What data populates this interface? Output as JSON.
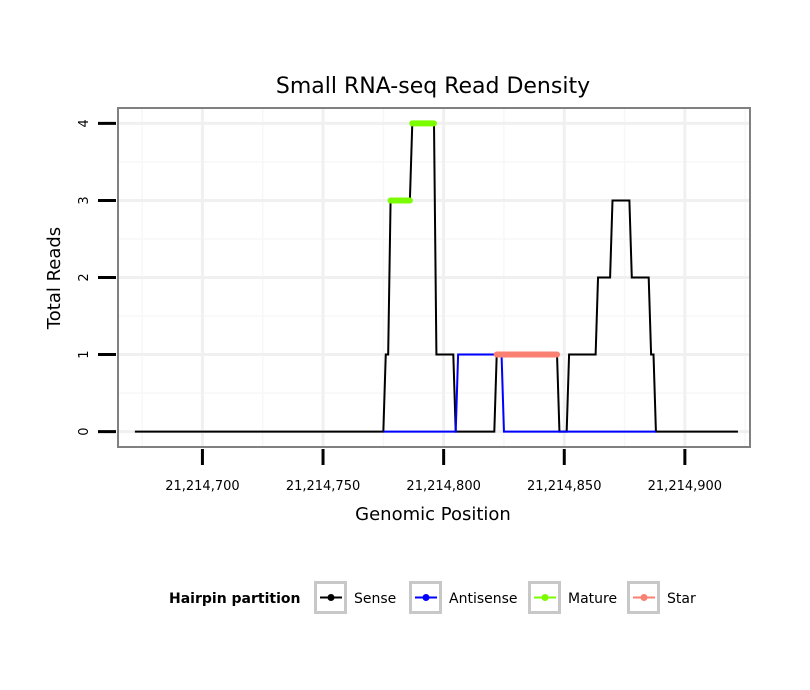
{
  "chart_data": {
    "type": "line",
    "title": "Small RNA-seq Read Density",
    "xlabel": "Genomic Position",
    "ylabel": "Total Reads",
    "xlim": [
      21214665,
      21214927
    ],
    "ylim": [
      -0.2,
      4.2
    ],
    "x_ticks": [
      21214700,
      21214750,
      21214800,
      21214850,
      21214900
    ],
    "x_tick_labels": [
      "21,214,700",
      "21,214,750",
      "21,214,800",
      "21,214,850",
      "21,214,900"
    ],
    "y_ticks": [
      0,
      1,
      2,
      3,
      4
    ],
    "y_tick_labels": [
      "0",
      "1",
      "2",
      "3",
      "4"
    ],
    "grid": true,
    "legend": {
      "title": "Hairpin partition",
      "position": "bottom",
      "entries": [
        "Sense",
        "Antisense",
        "Mature",
        "Star"
      ]
    },
    "series": [
      {
        "name": "Sense",
        "color": "#000000",
        "style": "line",
        "points": [
          [
            21214672,
            0
          ],
          [
            21214775,
            0
          ],
          [
            21214776,
            1
          ],
          [
            21214777,
            1
          ],
          [
            21214778,
            3
          ],
          [
            21214786,
            3
          ],
          [
            21214787,
            4
          ],
          [
            21214796,
            4
          ],
          [
            21214797,
            1
          ],
          [
            21214804,
            1
          ],
          [
            21214805,
            0
          ],
          [
            21214821,
            0
          ],
          [
            21214822,
            1
          ],
          [
            21214847,
            1
          ],
          [
            21214848,
            0
          ],
          [
            21214851,
            0
          ],
          [
            21214852,
            1
          ],
          [
            21214863,
            1
          ],
          [
            21214864,
            2
          ],
          [
            21214869,
            2
          ],
          [
            21214870,
            3
          ],
          [
            21214877,
            3
          ],
          [
            21214878,
            2
          ],
          [
            21214885,
            2
          ],
          [
            21214886,
            1
          ],
          [
            21214887,
            1
          ],
          [
            21214888,
            0
          ],
          [
            21214922,
            0
          ]
        ]
      },
      {
        "name": "Antisense",
        "color": "#0000ff",
        "style": "line",
        "points": [
          [
            21214775,
            0
          ],
          [
            21214805,
            0
          ],
          [
            21214806,
            1
          ],
          [
            21214824,
            1
          ],
          [
            21214825,
            0
          ],
          [
            21214888,
            0
          ]
        ]
      },
      {
        "name": "Mature",
        "color": "#7cfc00",
        "style": "segment",
        "segments": [
          {
            "x0": 21214778,
            "x1": 21214786,
            "y": 3
          },
          {
            "x0": 21214787,
            "x1": 21214796,
            "y": 4
          }
        ]
      },
      {
        "name": "Star",
        "color": "#fa8072",
        "style": "segment",
        "segments": [
          {
            "x0": 21214822,
            "x1": 21214847,
            "y": 1
          }
        ]
      }
    ]
  }
}
